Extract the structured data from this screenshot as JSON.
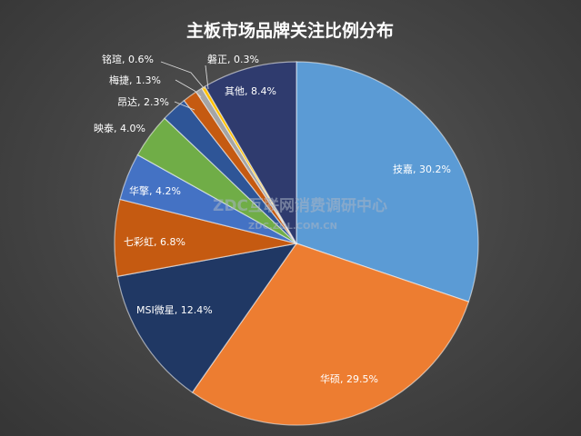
{
  "chart_data": {
    "type": "pie",
    "title": "主板市场品牌关注比例分布",
    "slices": [
      {
        "name": "技嘉",
        "value": 30.2,
        "label": "技嘉, 30.2%",
        "color": "#5b9bd5"
      },
      {
        "name": "华硕",
        "value": 29.5,
        "label": "华硕, 29.5%",
        "color": "#ed7d31"
      },
      {
        "name": "MSI微星",
        "value": 12.4,
        "label": "MSI微星, 12.4%",
        "color": "#203864"
      },
      {
        "name": "七彩虹",
        "value": 6.8,
        "label": "七彩虹, 6.8%",
        "color": "#c55a11"
      },
      {
        "name": "华擎",
        "value": 4.2,
        "label": "华擎, 4.2%",
        "color": "#4472c4"
      },
      {
        "name": "映泰",
        "value": 4.0,
        "label": "映泰, 4.0%",
        "color": "#70ad47"
      },
      {
        "name": "昂达",
        "value": 2.3,
        "label": "昂达, 2.3%",
        "color": "#2e5597"
      },
      {
        "name": "梅捷",
        "value": 1.3,
        "label": "梅捷, 1.3%",
        "color": "#c55a11"
      },
      {
        "name": "铭瑄",
        "value": 0.6,
        "label": "铭瑄, 0.6%",
        "color": "#a5a5a5"
      },
      {
        "name": "磐正",
        "value": 0.3,
        "label": "磐正, 0.3%",
        "color": "#ffc000"
      },
      {
        "name": "其他",
        "value": 8.4,
        "label": "其他, 8.4%",
        "color": "#2f3b6e"
      }
    ]
  },
  "watermark": {
    "line1": "ZDC互联网消费调研中心",
    "line2": "ZDC.ZOL.COM.CN"
  }
}
